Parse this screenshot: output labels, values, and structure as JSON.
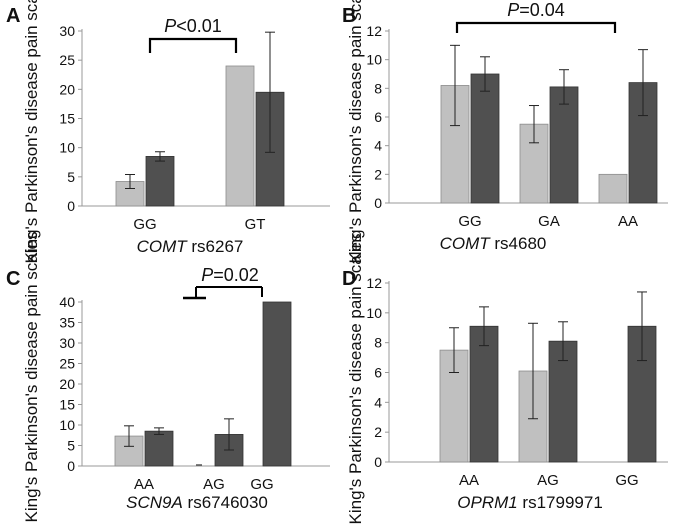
{
  "ylabel": "King's Parkinson's disease  pain scales",
  "colors": {
    "series1": "#c0c0c0",
    "series2": "#505050",
    "axis": "#999999",
    "ink": "#111111"
  },
  "chart_data": [
    {
      "panel": "A",
      "type": "bar",
      "gene": "COMT",
      "snp": "rs6267",
      "categories": [
        "GG",
        "GT"
      ],
      "ylim": [
        0,
        30
      ],
      "yticks": [
        0,
        5,
        10,
        15,
        20,
        25,
        30
      ],
      "series": [
        {
          "values": [
            4.2,
            24.0
          ],
          "err": [
            1.2,
            0
          ]
        },
        {
          "values": [
            8.5,
            19.5
          ],
          "err": [
            0.8,
            10.3
          ]
        }
      ],
      "annotation": {
        "p_italic": "P",
        "p_rest": "<0.01"
      }
    },
    {
      "panel": "B",
      "type": "bar",
      "gene": "COMT",
      "snp": "rs4680",
      "categories": [
        "GG",
        "GA",
        "AA"
      ],
      "ylim": [
        0,
        12
      ],
      "yticks": [
        0,
        2,
        4,
        6,
        8,
        10,
        12
      ],
      "series": [
        {
          "values": [
            8.2,
            5.5,
            2.0
          ],
          "err": [
            2.8,
            1.3,
            0
          ]
        },
        {
          "values": [
            9.0,
            8.1,
            8.4
          ],
          "err": [
            1.2,
            1.2,
            2.3
          ]
        }
      ],
      "annotation": {
        "p_italic": "P",
        "p_rest": "=0.04"
      }
    },
    {
      "panel": "C",
      "type": "bar",
      "gene": "SCN9A",
      "snp": "rs6746030",
      "categories": [
        "AA",
        "AG",
        "GG"
      ],
      "ylim": [
        0,
        40
      ],
      "yticks": [
        0,
        5,
        10,
        15,
        20,
        25,
        30,
        35,
        40
      ],
      "series": [
        {
          "values": [
            7.3,
            0,
            0
          ],
          "err": [
            2.5,
            0,
            0
          ]
        },
        {
          "values": [
            8.5,
            7.7,
            40.0
          ],
          "err": [
            0.8,
            3.8,
            0
          ]
        }
      ],
      "annotation": {
        "p_italic": "P",
        "p_rest": "=0.02"
      }
    },
    {
      "panel": "D",
      "type": "bar",
      "gene": "OPRM1",
      "snp": "rs1799971",
      "categories": [
        "AA",
        "AG",
        "GG"
      ],
      "ylim": [
        0,
        12
      ],
      "yticks": [
        0,
        2,
        4,
        6,
        8,
        10,
        12
      ],
      "series": [
        {
          "values": [
            7.5,
            6.1,
            0
          ],
          "err": [
            1.5,
            3.2,
            0
          ]
        },
        {
          "values": [
            9.1,
            8.1,
            9.1
          ],
          "err": [
            1.3,
            1.3,
            2.3
          ]
        }
      ]
    }
  ]
}
